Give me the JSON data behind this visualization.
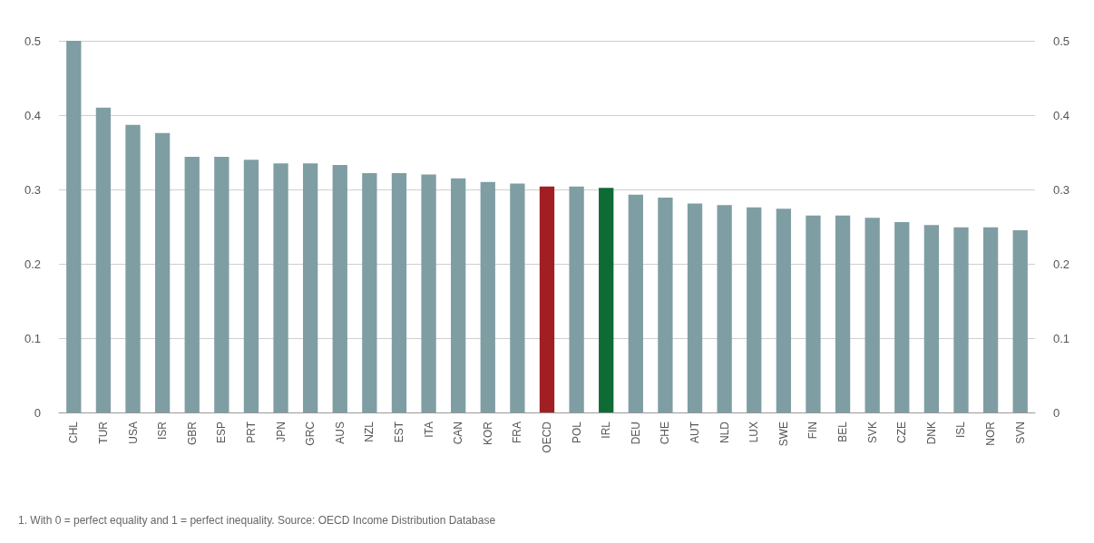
{
  "chart_data": {
    "type": "bar",
    "categories": [
      "CHL",
      "TUR",
      "USA",
      "ISR",
      "GBR",
      "ESP",
      "PRT",
      "JPN",
      "GRC",
      "AUS",
      "NZL",
      "EST",
      "ITA",
      "CAN",
      "KOR",
      "FRA",
      "OECD",
      "POL",
      "IRL",
      "DEU",
      "CHE",
      "AUT",
      "NLD",
      "LUX",
      "SWE",
      "FIN",
      "BEL",
      "SVK",
      "CZE",
      "DNK",
      "ISL",
      "NOR",
      "SVN"
    ],
    "values": [
      0.5,
      0.41,
      0.387,
      0.376,
      0.344,
      0.344,
      0.34,
      0.335,
      0.335,
      0.333,
      0.322,
      0.322,
      0.32,
      0.315,
      0.31,
      0.308,
      0.304,
      0.304,
      0.302,
      0.293,
      0.289,
      0.281,
      0.279,
      0.276,
      0.274,
      0.265,
      0.265,
      0.262,
      0.256,
      0.252,
      0.249,
      0.249,
      0.245
    ],
    "colors": [
      "#7f9ea3",
      "#7f9ea3",
      "#7f9ea3",
      "#7f9ea3",
      "#7f9ea3",
      "#7f9ea3",
      "#7f9ea3",
      "#7f9ea3",
      "#7f9ea3",
      "#7f9ea3",
      "#7f9ea3",
      "#7f9ea3",
      "#7f9ea3",
      "#7f9ea3",
      "#7f9ea3",
      "#7f9ea3",
      "#a11f22",
      "#7f9ea3",
      "#0e6b35",
      "#7f9ea3",
      "#7f9ea3",
      "#7f9ea3",
      "#7f9ea3",
      "#7f9ea3",
      "#7f9ea3",
      "#7f9ea3",
      "#7f9ea3",
      "#7f9ea3",
      "#7f9ea3",
      "#7f9ea3",
      "#7f9ea3",
      "#7f9ea3",
      "#7f9ea3"
    ],
    "ylim": [
      0,
      0.5
    ],
    "yticks": [
      0,
      0.1,
      0.2,
      0.3,
      0.4,
      0.5
    ],
    "y2lim": [
      0,
      0.5
    ],
    "y2ticks": [
      0,
      0.1,
      0.2,
      0.3,
      0.4,
      0.5
    ],
    "grid": "y",
    "annotations": [
      "1. With 0 = perfect equality and 1 = perfect inequality. Source: OECD Income Distribution Database"
    ]
  }
}
